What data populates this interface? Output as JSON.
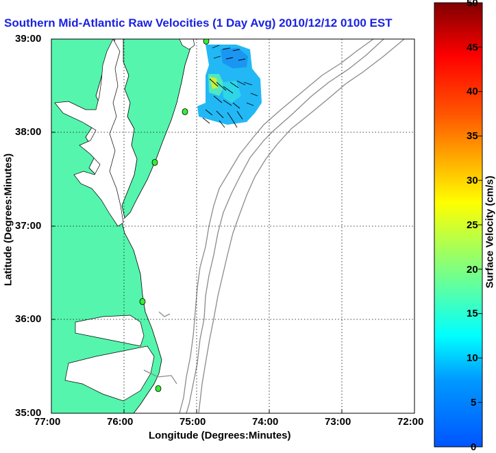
{
  "title": "Southern Mid-Atlantic Raw Velocities (1 Day Avg) 2010/12/12 0100 EST",
  "map": {
    "xlabel": "Longitude (Degrees:Minutes)",
    "ylabel": "Latitude (Degrees:Minutes)",
    "x_ticks": [
      "77:00",
      "76:00",
      "75:00",
      "74:00",
      "73:00",
      "72:00"
    ],
    "y_ticks": [
      "39:00",
      "38:00",
      "37:00",
      "36:00",
      "35:00"
    ],
    "land_color": "#55f5ad",
    "grid": "dotted"
  },
  "colorbar": {
    "label": "Surface Velocity (cm/s)",
    "ticks": [
      "0",
      "5",
      "10",
      "15",
      "20",
      "25",
      "30",
      "35",
      "40",
      "45",
      "50"
    ],
    "min": 0,
    "max": 50,
    "colormap": "jet"
  }
}
